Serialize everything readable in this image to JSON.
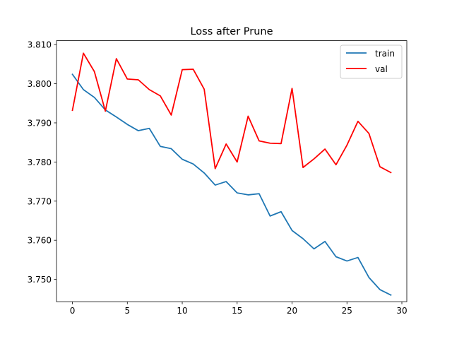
{
  "chart_data": {
    "type": "line",
    "title": "Loss after Prune",
    "xlabel": "",
    "ylabel": "",
    "xlim": [
      -1.45,
      30.45
    ],
    "ylim": [
      3.7443,
      3.811
    ],
    "xticks": [
      0,
      5,
      10,
      15,
      20,
      25,
      30
    ],
    "xtick_labels": [
      "0",
      "5",
      "10",
      "15",
      "20",
      "25",
      "30"
    ],
    "yticks": [
      3.75,
      3.76,
      3.77,
      3.78,
      3.79,
      3.8,
      3.81
    ],
    "ytick_labels": [
      "3.750",
      "3.760",
      "3.770",
      "3.780",
      "3.790",
      "3.800",
      "3.810"
    ],
    "grid": false,
    "legend_position": "upper right",
    "x": [
      0,
      1,
      2,
      3,
      4,
      5,
      6,
      7,
      8,
      9,
      10,
      11,
      12,
      13,
      14,
      15,
      16,
      17,
      18,
      19,
      20,
      21,
      22,
      23,
      24,
      25,
      26,
      27,
      28,
      29
    ],
    "series": [
      {
        "name": "train",
        "color": "#1f77b4",
        "values": [
          3.8024,
          3.7985,
          3.7965,
          3.7933,
          3.7915,
          3.7896,
          3.788,
          3.7886,
          3.784,
          3.7834,
          3.7807,
          3.7795,
          3.7772,
          3.7741,
          3.775,
          3.7721,
          3.7716,
          3.7719,
          3.7662,
          3.7673,
          3.7625,
          3.7604,
          3.7578,
          3.7597,
          3.7558,
          3.7547,
          3.7556,
          3.7505,
          3.7474,
          3.746
        ]
      },
      {
        "name": "val",
        "color": "#ff0000",
        "values": [
          3.7932,
          3.8078,
          3.8031,
          3.793,
          3.8064,
          3.8012,
          3.801,
          3.7985,
          3.7969,
          3.792,
          3.8036,
          3.8037,
          3.7986,
          3.7783,
          3.7846,
          3.78,
          3.7917,
          3.7854,
          3.7848,
          3.7847,
          3.7988,
          3.7786,
          3.7808,
          3.7833,
          3.7793,
          3.7843,
          3.7904,
          3.7873,
          3.7788,
          3.7773
        ]
      }
    ]
  }
}
